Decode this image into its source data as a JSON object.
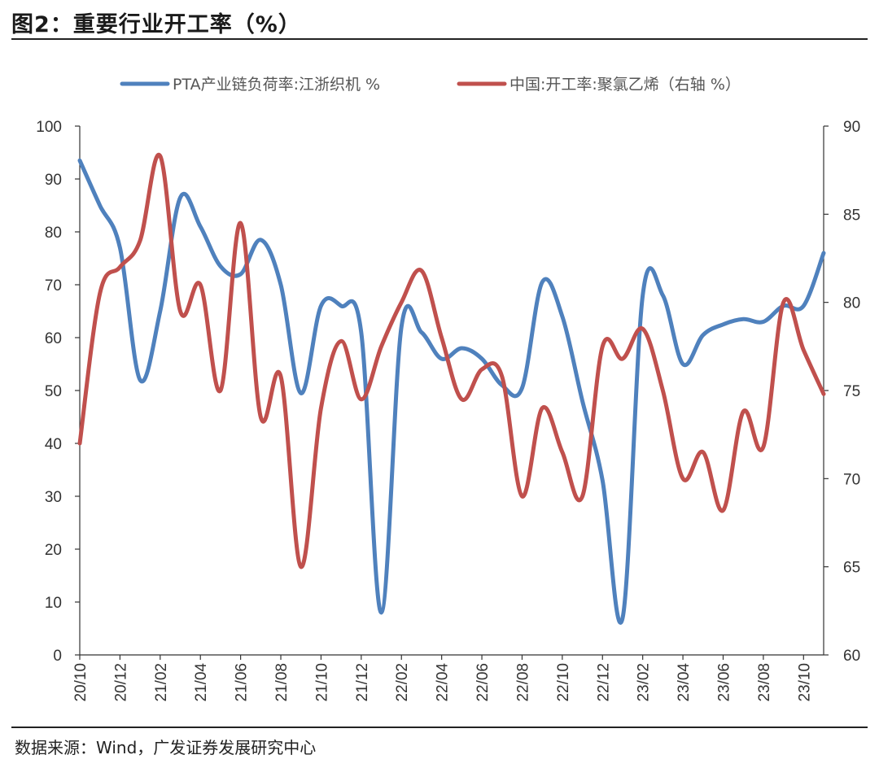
{
  "figure": {
    "title": "图2：重要行业开工率（%）",
    "source": "数据来源：Wind，广发证券发展研究中心"
  },
  "chart_data": {
    "type": "line",
    "x": [
      "20/10",
      "20/11",
      "20/12",
      "21/01",
      "21/02",
      "21/03",
      "21/04",
      "21/05",
      "21/06",
      "21/07",
      "21/08",
      "21/09",
      "21/10",
      "21/11",
      "21/12",
      "22/01",
      "22/02",
      "22/03",
      "22/04",
      "22/05",
      "22/06",
      "22/07",
      "22/08",
      "22/09",
      "22/10",
      "22/11",
      "22/12",
      "23/01",
      "23/02",
      "23/03",
      "23/04",
      "23/05",
      "23/06",
      "23/07",
      "23/08",
      "23/09",
      "23/10",
      "23/11"
    ],
    "xticks": [
      "20/10",
      "20/12",
      "21/02",
      "21/04",
      "21/06",
      "21/08",
      "21/10",
      "21/12",
      "22/02",
      "22/04",
      "22/06",
      "22/08",
      "22/10",
      "22/12",
      "23/02",
      "23/04",
      "23/06",
      "23/08",
      "23/10"
    ],
    "series": [
      {
        "name": "PTA产业链负荷率:江浙织机 %",
        "axis": "left",
        "color": "#4f81bd",
        "values": [
          93.5,
          85,
          77,
          52,
          65,
          86.5,
          81,
          73.5,
          72,
          78.5,
          70,
          49.5,
          66,
          66,
          61,
          8,
          62,
          61,
          56,
          58,
          56,
          51,
          50.5,
          70.5,
          64,
          48,
          33,
          7,
          68,
          68,
          55,
          60.5,
          62.5,
          63.5,
          63,
          66,
          66,
          76
        ]
      },
      {
        "name": "中国:开工率:聚氯乙烯（右轴 %）",
        "axis": "right",
        "color": "#c0504d",
        "values": [
          72,
          80.5,
          82,
          83.5,
          88.3,
          79.5,
          81,
          75,
          84.5,
          73.5,
          75.8,
          65,
          74,
          77.8,
          74.5,
          77.5,
          80,
          81.8,
          78,
          74.5,
          76.2,
          75.8,
          69,
          74,
          71.5,
          69,
          77.5,
          76.8,
          78.5,
          75,
          70,
          71.5,
          68.2,
          73.8,
          71.8,
          80,
          77.3,
          74.8
        ]
      }
    ],
    "yleft": {
      "ylim": [
        0,
        100
      ],
      "ticks": [
        0,
        10,
        20,
        30,
        40,
        50,
        60,
        70,
        80,
        90,
        100
      ]
    },
    "yright": {
      "ylim": [
        60,
        90
      ],
      "ticks": [
        60,
        65,
        70,
        75,
        80,
        85,
        90
      ]
    },
    "legend": "top-center",
    "grid": false
  }
}
